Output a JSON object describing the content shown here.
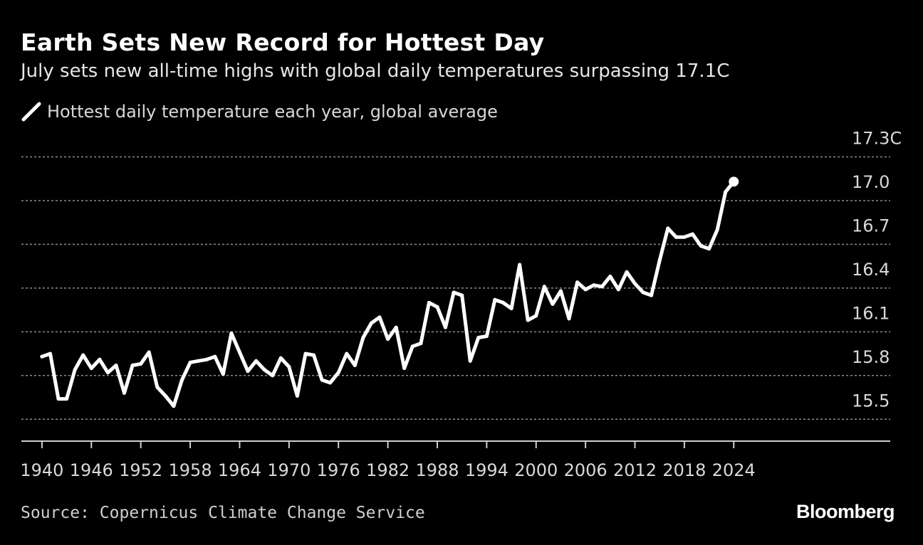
{
  "title": "Earth Sets New Record for Hottest Day",
  "subtitle": "July sets new all-time highs with global daily temperatures surpassing 17.1C",
  "legend": {
    "label": "Hottest daily temperature each year, global average"
  },
  "source": "Source: Copernicus Climate Change Service",
  "brand": "Bloomberg",
  "colors": {
    "background": "#000000",
    "line": "#ffffff",
    "grid": "#8c8c8c",
    "text": "#d9d9d9"
  },
  "chart_data": {
    "type": "line",
    "title": "Earth Sets New Record for Hottest Day",
    "xlabel": "",
    "ylabel": "",
    "xlim": [
      1937.5,
      2043
    ],
    "ylim": [
      15.35,
      17.4
    ],
    "x_ticks": [
      1940,
      1946,
      1952,
      1958,
      1964,
      1970,
      1976,
      1982,
      1988,
      1994,
      2000,
      2006,
      2012,
      2018,
      2024
    ],
    "x_tick_labels": [
      "1940",
      "1946",
      "1952",
      "1958",
      "1964",
      "1970",
      "1976",
      "1982",
      "1988",
      "1994",
      "2000",
      "2006",
      "2012",
      "2018",
      "2024"
    ],
    "y_ticks": [
      15.5,
      15.8,
      16.1,
      16.4,
      16.7,
      17.0,
      17.3
    ],
    "y_tick_labels": [
      "15.5",
      "15.8",
      "16.1",
      "16.4",
      "16.7",
      "17.0",
      "17.3C"
    ],
    "grid": true,
    "legend_position": "top-left",
    "series": [
      {
        "name": "Hottest daily temperature each year, global average",
        "x": [
          1940,
          1941,
          1942,
          1943,
          1944,
          1945,
          1946,
          1947,
          1948,
          1949,
          1950,
          1951,
          1952,
          1953,
          1954,
          1955,
          1956,
          1957,
          1958,
          1959,
          1960,
          1961,
          1962,
          1963,
          1964,
          1965,
          1966,
          1967,
          1968,
          1969,
          1970,
          1971,
          1972,
          1973,
          1974,
          1975,
          1976,
          1977,
          1978,
          1979,
          1980,
          1981,
          1982,
          1983,
          1984,
          1985,
          1986,
          1987,
          1988,
          1989,
          1990,
          1991,
          1992,
          1993,
          1994,
          1995,
          1996,
          1997,
          1998,
          1999,
          2000,
          2001,
          2002,
          2003,
          2004,
          2005,
          2006,
          2007,
          2008,
          2009,
          2010,
          2011,
          2012,
          2013,
          2014,
          2015,
          2016,
          2017,
          2018,
          2019,
          2020,
          2021,
          2022,
          2023,
          2024
        ],
        "values": [
          15.93,
          15.95,
          15.64,
          15.64,
          15.84,
          15.94,
          15.85,
          15.91,
          15.82,
          15.87,
          15.68,
          15.87,
          15.88,
          15.96,
          15.72,
          15.66,
          15.59,
          15.77,
          15.89,
          15.9,
          15.91,
          15.93,
          15.81,
          16.09,
          15.96,
          15.83,
          15.9,
          15.84,
          15.8,
          15.92,
          15.86,
          15.66,
          15.95,
          15.94,
          15.77,
          15.75,
          15.82,
          15.95,
          15.87,
          16.06,
          16.16,
          16.2,
          16.05,
          16.13,
          15.85,
          16.0,
          16.02,
          16.3,
          16.27,
          16.13,
          16.37,
          16.35,
          15.9,
          16.06,
          16.07,
          16.32,
          16.3,
          16.26,
          16.56,
          16.18,
          16.21,
          16.41,
          16.29,
          16.38,
          16.19,
          16.44,
          16.39,
          16.42,
          16.41,
          16.48,
          16.39,
          16.51,
          16.43,
          16.37,
          16.35,
          16.59,
          16.81,
          16.75,
          16.75,
          16.77,
          16.69,
          16.67,
          16.8,
          17.06,
          17.13
        ]
      }
    ],
    "annotations": [
      {
        "type": "endpoint-marker",
        "x": 2024,
        "y": 17.13
      }
    ]
  }
}
